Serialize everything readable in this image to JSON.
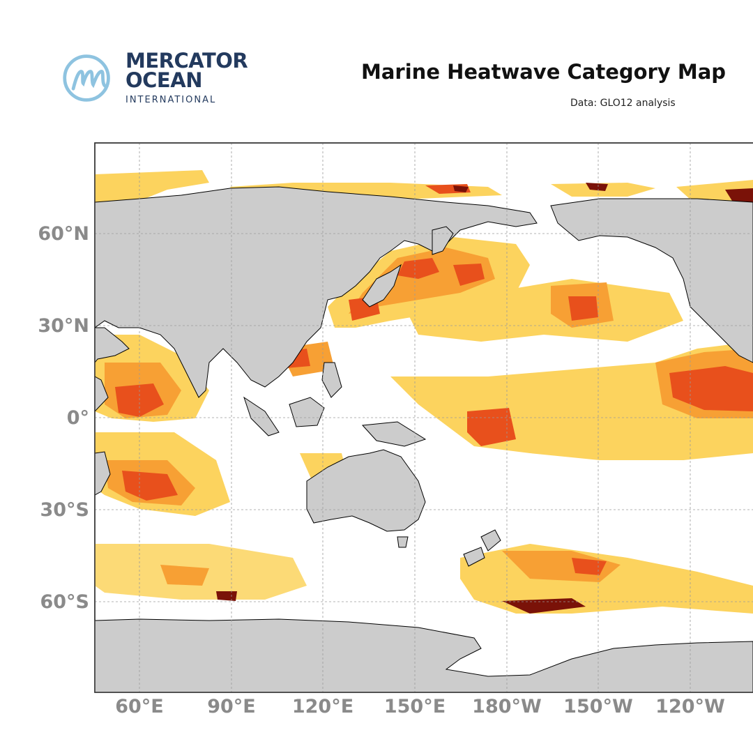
{
  "logo": {
    "line1": "MERCATOR",
    "line2": "OCEAN",
    "line3": "INTERNATIONAL",
    "icon": "mercator-m-logo"
  },
  "title": "Marine Heatwave Category Map",
  "subtitle": "Data: GLO12 analysis",
  "colors": {
    "land": "#cccccc",
    "ocean": "#ffffff",
    "moderate": "#fcd35e",
    "strong": "#f7a034",
    "severe": "#e8501c",
    "extreme": "#7a1208",
    "gridline": "#9a9a9a",
    "axis_text": "#8a8a8a",
    "logo_text": "#233a5e",
    "logo_icon": "#8ec3e0"
  },
  "lat_labels": [
    "60°N",
    "30°N",
    "0°",
    "30°S",
    "60°S"
  ],
  "lon_labels": [
    "60°E",
    "90°E",
    "120°E",
    "150°E",
    "180°W",
    "150°W",
    "120°W"
  ]
}
